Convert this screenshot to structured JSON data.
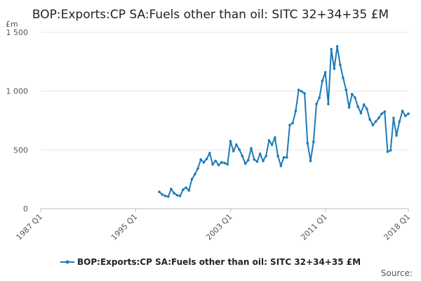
{
  "chart_data": {
    "type": "line",
    "title": "BOP:Exports:CP SA:Fuels other than oil: SITC 32+34+35 £M",
    "y_label": "£m",
    "source": "Source:",
    "x": [
      1997,
      1997.25,
      1997.5,
      1997.75,
      1998,
      1998.25,
      1998.5,
      1998.75,
      1999,
      1999.25,
      1999.5,
      1999.75,
      2000,
      2000.25,
      2000.5,
      2000.75,
      2001,
      2001.25,
      2001.5,
      2001.75,
      2002,
      2002.25,
      2002.5,
      2002.75,
      2003,
      2003.25,
      2003.5,
      2003.75,
      2004,
      2004.25,
      2004.5,
      2004.75,
      2005,
      2005.25,
      2005.5,
      2005.75,
      2006,
      2006.25,
      2006.5,
      2006.75,
      2007,
      2007.25,
      2007.5,
      2007.75,
      2008,
      2008.25,
      2008.5,
      2008.75,
      2009,
      2009.25,
      2009.5,
      2009.75,
      2010,
      2010.25,
      2010.5,
      2010.75,
      2011,
      2011.25,
      2011.5,
      2011.75,
      2012,
      2012.25,
      2012.5,
      2012.75,
      2013,
      2013.25,
      2013.5,
      2013.75,
      2014,
      2014.25,
      2014.5,
      2014.75,
      2015,
      2015.25,
      2015.5,
      2015.75,
      2016,
      2016.25,
      2016.5,
      2016.75,
      2017,
      2017.25,
      2017.5,
      2017.75,
      2018
    ],
    "series": [
      {
        "name": "BOP:Exports:CP SA:Fuels other than oil: SITC 32+34+35 £M",
        "color": "#1d7ab7",
        "values": [
          143,
          120,
          108,
          102,
          167,
          131,
          114,
          108,
          161,
          179,
          155,
          251,
          293,
          341,
          418,
          394,
          424,
          472,
          377,
          406,
          371,
          394,
          388,
          377,
          574,
          490,
          544,
          502,
          448,
          383,
          412,
          514,
          418,
          400,
          466,
          406,
          448,
          580,
          544,
          604,
          448,
          365,
          436,
          436,
          711,
          729,
          831,
          1010,
          998,
          980,
          556,
          406,
          568,
          890,
          944,
          1088,
          1160,
          890,
          1357,
          1190,
          1381,
          1225,
          1112,
          1010,
          861,
          974,
          944,
          867,
          813,
          885,
          849,
          759,
          711,
          741,
          771,
          807,
          825,
          484,
          496,
          771,
          622,
          741,
          831,
          789,
          807
        ]
      }
    ],
    "xlim": [
      1987,
      2018
    ],
    "xticks": [
      {
        "value": 1987,
        "label": "1987 Q1"
      },
      {
        "value": 1995,
        "label": "1995 Q1"
      },
      {
        "value": 2003,
        "label": "2003 Q1"
      },
      {
        "value": 2011,
        "label": "2011 Q1"
      },
      {
        "value": 2018,
        "label": "2018 Q1"
      }
    ],
    "ylim": [
      0,
      1500
    ],
    "yticks": [
      0,
      500,
      {
        "value": 1000,
        "label": "1 000"
      },
      {
        "value": 1500,
        "label": "1 500"
      }
    ],
    "grid": true
  }
}
